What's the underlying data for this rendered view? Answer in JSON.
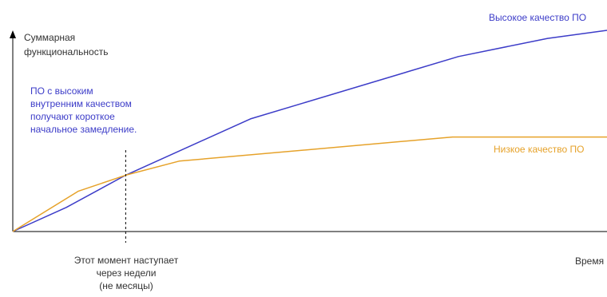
{
  "chart_data": {
    "type": "line",
    "y_axis_label_lines": [
      "Суммарная",
      "функциональность"
    ],
    "x_axis_label": "Время",
    "annotation_left_lines": [
      "ПО с высоким",
      "внутренним качеством",
      "получают короткое",
      "начальное замедление."
    ],
    "annotation_bottom_lines": [
      "Этот момент наступает",
      "через недели",
      "(не месяцы)"
    ],
    "crossover_x": 0.19,
    "xlim": [
      0,
      1
    ],
    "ylim": [
      0,
      1
    ],
    "grid": false,
    "series": [
      {
        "name": "Высокое качество ПО",
        "color": "#3c3cc8",
        "x": [
          0,
          0.09,
          0.19,
          0.4,
          0.75,
          0.9,
          1.0
        ],
        "y": [
          0,
          0.12,
          0.28,
          0.56,
          0.87,
          0.96,
          1.0
        ]
      },
      {
        "name": "Низкое качество ПО",
        "color": "#e6a22a",
        "x": [
          0,
          0.11,
          0.19,
          0.28,
          0.74,
          1.0
        ],
        "y": [
          0,
          0.2,
          0.28,
          0.35,
          0.47,
          0.47
        ]
      }
    ],
    "colors": {
      "axis": "#000000",
      "annotation_left": "#3c3cc8",
      "text": "#333333"
    }
  }
}
